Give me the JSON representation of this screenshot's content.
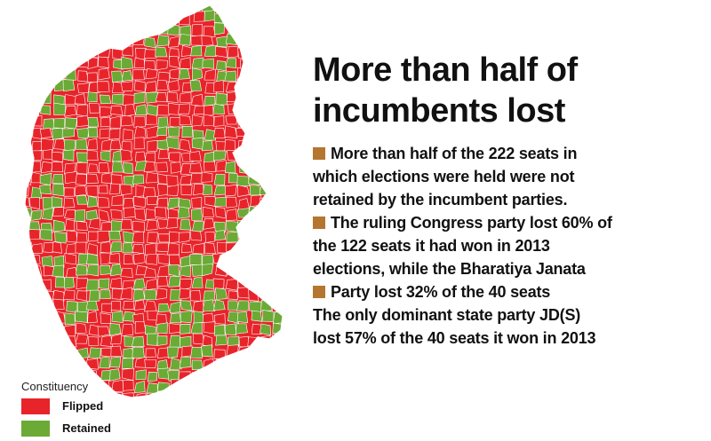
{
  "headline": {
    "line1": "More than half of",
    "line2": "incumbents lost"
  },
  "points": [
    "More than half of the 222 seats in",
    "which elections were held were not",
    "retained by the incumbent parties.",
    "The ruling Congress party lost 60% of",
    "the 122 seats it had won in 2013",
    "elections, while the Bharatiya Janata",
    "Party lost 32% of the 40 seats",
    "The only dominant state party JD(S)",
    "lost 57% of the 40 seats it won in 2013"
  ],
  "legend": {
    "title": "Constituency",
    "items": [
      {
        "label": "Flipped",
        "color": "#e8242b"
      },
      {
        "label": "Retained",
        "color": "#6aaa35"
      }
    ]
  },
  "colors": {
    "flipped": "#e8242b",
    "retained": "#6aaa35",
    "bullet": "#b5762f",
    "border": "#ffffff"
  }
}
